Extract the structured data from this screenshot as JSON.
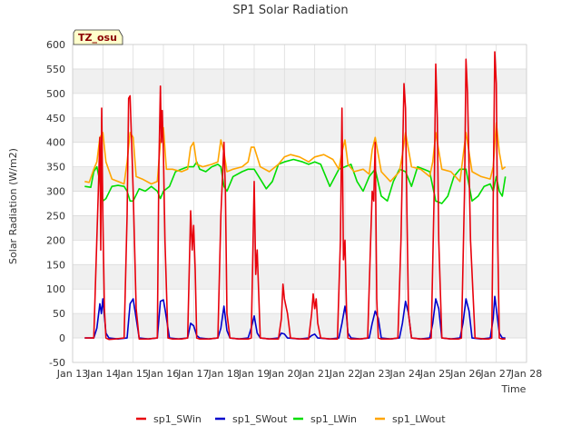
{
  "chart_data": {
    "type": "line",
    "title": "SP1 Solar Radiation",
    "xlabel": "Time",
    "ylabel": "Solar Radiation (W/m2)",
    "site_badge": "TZ_osu",
    "ylim": [
      -50,
      600
    ],
    "yticks": [
      -50,
      0,
      50,
      100,
      150,
      200,
      250,
      300,
      350,
      400,
      450,
      500,
      550,
      600
    ],
    "xlim": [
      13,
      28
    ],
    "xticks": [
      {
        "value": 13,
        "label": "Jan 13"
      },
      {
        "value": 14,
        "label": "Jan 14"
      },
      {
        "value": 15,
        "label": "Jan 15"
      },
      {
        "value": 16,
        "label": "Jan 16"
      },
      {
        "value": 17,
        "label": "Jan 17"
      },
      {
        "value": 18,
        "label": "Jan 18"
      },
      {
        "value": 19,
        "label": "Jan 19"
      },
      {
        "value": 20,
        "label": "Jan 20"
      },
      {
        "value": 21,
        "label": "Jan 21"
      },
      {
        "value": 22,
        "label": "Jan 22"
      },
      {
        "value": 23,
        "label": "Jan 23"
      },
      {
        "value": 24,
        "label": "Jan 24"
      },
      {
        "value": 25,
        "label": "Jan 25"
      },
      {
        "value": 26,
        "label": "Jan 26"
      },
      {
        "value": 27,
        "label": "Jan 27"
      },
      {
        "value": 28,
        "label": "Jan 28"
      }
    ],
    "grid": true,
    "legend_position": "bottom",
    "series": [
      {
        "name": "sp1_SWin",
        "color": "#e8000b",
        "x": [
          13.4,
          13.7,
          13.85,
          13.9,
          13.93,
          13.96,
          14.0,
          14.05,
          14.1,
          14.2,
          14.4,
          14.7,
          14.8,
          14.85,
          14.9,
          15.0,
          15.1,
          15.2,
          15.5,
          15.8,
          15.85,
          15.9,
          15.93,
          15.96,
          16.0,
          16.05,
          16.15,
          16.3,
          16.6,
          16.8,
          16.9,
          16.95,
          17.0,
          17.05,
          17.1,
          17.2,
          17.5,
          17.8,
          17.9,
          18.0,
          18.05,
          18.1,
          18.2,
          18.5,
          18.8,
          18.9,
          18.95,
          19.0,
          19.05,
          19.1,
          19.2,
          19.5,
          19.8,
          19.9,
          19.95,
          20.0,
          20.1,
          20.2,
          20.5,
          20.8,
          20.9,
          20.95,
          21.0,
          21.05,
          21.1,
          21.2,
          21.5,
          21.75,
          21.85,
          21.9,
          21.95,
          22.0,
          22.05,
          22.1,
          22.2,
          22.5,
          22.75,
          22.85,
          22.9,
          22.95,
          23.0,
          23.05,
          23.1,
          23.2,
          23.5,
          23.75,
          23.85,
          23.95,
          24.0,
          24.05,
          24.1,
          24.2,
          24.5,
          24.75,
          24.85,
          24.95,
          25.0,
          25.05,
          25.1,
          25.2,
          25.5,
          25.75,
          25.85,
          25.95,
          26.0,
          26.05,
          26.15,
          26.3,
          26.6,
          26.75,
          26.85,
          26.9,
          26.95,
          27.0,
          27.05,
          27.1,
          27.2,
          27.3
        ],
        "y": [
          0,
          0,
          300,
          410,
          180,
          470,
          250,
          60,
          0,
          -3,
          -2,
          0,
          250,
          490,
          495,
          300,
          60,
          -2,
          -2,
          0,
          350,
          515,
          400,
          465,
          380,
          200,
          0,
          -2,
          -2,
          0,
          260,
          180,
          230,
          140,
          0,
          -2,
          -2,
          0,
          250,
          400,
          300,
          50,
          0,
          -2,
          -2,
          0,
          150,
          320,
          130,
          180,
          0,
          -2,
          -2,
          40,
          110,
          80,
          50,
          0,
          -2,
          -2,
          50,
          90,
          60,
          80,
          30,
          0,
          -2,
          -2,
          200,
          470,
          160,
          200,
          60,
          0,
          -2,
          -2,
          0,
          200,
          300,
          280,
          400,
          80,
          0,
          -2,
          -2,
          0,
          200,
          520,
          470,
          250,
          50,
          0,
          -2,
          -2,
          0,
          300,
          560,
          450,
          200,
          0,
          -2,
          -2,
          0,
          300,
          570,
          500,
          200,
          0,
          -2,
          -2,
          0,
          280,
          585,
          520,
          200,
          0,
          -2,
          -2
        ]
      },
      {
        "name": "sp1_SWout",
        "color": "#0000cc",
        "x": [
          13.4,
          13.7,
          13.8,
          13.9,
          13.95,
          14.0,
          14.1,
          14.2,
          14.5,
          14.8,
          14.9,
          15.0,
          15.1,
          15.2,
          15.5,
          15.8,
          15.9,
          16.0,
          16.05,
          16.2,
          16.5,
          16.8,
          16.9,
          17.0,
          17.1,
          17.2,
          17.5,
          17.8,
          17.9,
          18.0,
          18.1,
          18.2,
          18.5,
          18.8,
          18.9,
          19.0,
          19.1,
          19.2,
          19.5,
          19.8,
          19.9,
          20.0,
          20.1,
          20.5,
          20.8,
          20.9,
          21.0,
          21.1,
          21.5,
          21.8,
          21.9,
          22.0,
          22.05,
          22.1,
          22.2,
          22.5,
          22.8,
          22.9,
          23.0,
          23.1,
          23.2,
          23.5,
          23.8,
          23.9,
          24.0,
          24.1,
          24.2,
          24.5,
          24.8,
          24.9,
          25.0,
          25.1,
          25.2,
          25.5,
          25.8,
          25.9,
          26.0,
          26.1,
          26.2,
          26.5,
          26.8,
          26.9,
          26.95,
          27.0,
          27.1,
          27.2,
          27.3
        ],
        "y": [
          0,
          0,
          20,
          70,
          50,
          80,
          10,
          0,
          -2,
          0,
          70,
          80,
          40,
          0,
          -2,
          0,
          75,
          78,
          60,
          0,
          -2,
          0,
          30,
          25,
          5,
          0,
          -2,
          0,
          20,
          65,
          15,
          0,
          -2,
          0,
          20,
          45,
          10,
          0,
          -2,
          0,
          10,
          8,
          0,
          -2,
          0,
          5,
          8,
          0,
          -2,
          0,
          30,
          65,
          45,
          10,
          0,
          -2,
          0,
          30,
          55,
          40,
          0,
          -2,
          0,
          30,
          75,
          50,
          0,
          -2,
          0,
          30,
          80,
          60,
          0,
          -2,
          0,
          30,
          80,
          55,
          0,
          -2,
          0,
          40,
          85,
          60,
          10,
          0,
          0
        ]
      },
      {
        "name": "sp1_LWin",
        "color": "#00dd00",
        "x": [
          13.4,
          13.6,
          13.7,
          13.8,
          13.9,
          14.0,
          14.1,
          14.3,
          14.5,
          14.7,
          14.8,
          14.9,
          15.0,
          15.2,
          15.4,
          15.6,
          15.8,
          15.9,
          16.0,
          16.2,
          16.4,
          16.6,
          16.8,
          17.0,
          17.1,
          17.2,
          17.4,
          17.6,
          17.8,
          17.9,
          18.0,
          18.1,
          18.3,
          18.6,
          18.8,
          19.0,
          19.2,
          19.4,
          19.6,
          19.8,
          20.0,
          20.3,
          20.6,
          20.8,
          21.0,
          21.2,
          21.5,
          21.8,
          22.0,
          22.2,
          22.4,
          22.6,
          22.8,
          23.0,
          23.2,
          23.4,
          23.6,
          23.8,
          24.0,
          24.2,
          24.4,
          24.6,
          24.8,
          25.0,
          25.2,
          25.4,
          25.6,
          25.8,
          26.0,
          26.2,
          26.4,
          26.6,
          26.8,
          26.9,
          27.0,
          27.1,
          27.2,
          27.3
        ],
        "y": [
          310,
          308,
          340,
          350,
          320,
          280,
          285,
          310,
          312,
          310,
          300,
          280,
          280,
          305,
          300,
          310,
          300,
          285,
          300,
          310,
          340,
          345,
          350,
          350,
          360,
          345,
          340,
          350,
          355,
          350,
          310,
          300,
          330,
          340,
          345,
          345,
          325,
          305,
          320,
          355,
          360,
          365,
          360,
          355,
          360,
          355,
          310,
          345,
          350,
          355,
          320,
          300,
          330,
          345,
          290,
          280,
          320,
          345,
          340,
          310,
          350,
          345,
          340,
          280,
          275,
          290,
          330,
          345,
          345,
          280,
          290,
          310,
          315,
          300,
          330,
          300,
          290,
          330
        ]
      },
      {
        "name": "sp1_LWout",
        "color": "#ffa500",
        "x": [
          13.4,
          13.55,
          13.7,
          13.8,
          13.9,
          14.0,
          14.1,
          14.3,
          14.5,
          14.7,
          14.8,
          14.9,
          15.0,
          15.1,
          15.3,
          15.6,
          15.8,
          15.9,
          16.0,
          16.1,
          16.3,
          16.6,
          16.8,
          16.9,
          17.0,
          17.1,
          17.3,
          17.6,
          17.8,
          17.9,
          18.0,
          18.1,
          18.3,
          18.6,
          18.8,
          18.9,
          19.0,
          19.2,
          19.5,
          19.8,
          20.0,
          20.2,
          20.5,
          20.8,
          21.0,
          21.3,
          21.6,
          21.8,
          21.9,
          22.0,
          22.1,
          22.3,
          22.6,
          22.8,
          22.9,
          23.0,
          23.2,
          23.5,
          23.8,
          23.9,
          24.0,
          24.2,
          24.5,
          24.8,
          24.9,
          25.0,
          25.2,
          25.5,
          25.8,
          25.9,
          26.0,
          26.2,
          26.5,
          26.8,
          26.9,
          27.0,
          27.1,
          27.2,
          27.3
        ],
        "y": [
          320,
          318,
          345,
          360,
          410,
          420,
          360,
          325,
          320,
          315,
          360,
          420,
          410,
          330,
          325,
          315,
          320,
          400,
          430,
          345,
          345,
          340,
          345,
          390,
          400,
          355,
          350,
          355,
          360,
          405,
          380,
          340,
          345,
          350,
          360,
          390,
          390,
          350,
          340,
          355,
          370,
          375,
          370,
          360,
          370,
          375,
          365,
          345,
          380,
          405,
          355,
          340,
          345,
          335,
          385,
          410,
          340,
          320,
          340,
          375,
          420,
          350,
          345,
          330,
          360,
          420,
          345,
          340,
          320,
          370,
          420,
          340,
          330,
          325,
          350,
          440,
          380,
          345,
          350
        ]
      }
    ]
  }
}
